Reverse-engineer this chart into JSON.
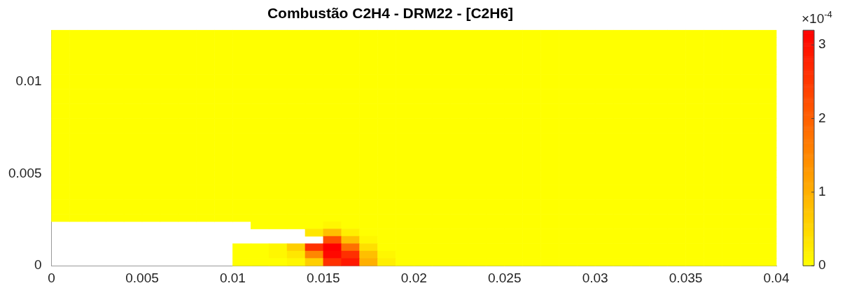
{
  "chart_data": {
    "type": "heatmap",
    "title": "Combustão C2H4 - DRM22 - [C2H6]",
    "x": [
      0.0005,
      0.0015,
      0.0025,
      0.0035,
      0.0045,
      0.0055,
      0.0065,
      0.0075,
      0.0085,
      0.0095,
      0.0105,
      0.0115,
      0.0125,
      0.0135,
      0.0145,
      0.0155,
      0.0165,
      0.0175,
      0.0185,
      0.0195,
      0.0205,
      0.0215,
      0.0225,
      0.0235,
      0.0245,
      0.0255,
      0.0265,
      0.0275,
      0.0285,
      0.0295,
      0.0305,
      0.0315,
      0.0325,
      0.0335,
      0.0345,
      0.0355,
      0.0365,
      0.0375,
      0.0385,
      0.0395
    ],
    "y": [
      0.0126,
      0.0122,
      0.0118,
      0.0114,
      0.011,
      0.0106,
      0.0102,
      0.0098,
      0.0094,
      0.009,
      0.0086,
      0.0082,
      0.0078,
      0.0074,
      0.007,
      0.0066,
      0.0062,
      0.0058,
      0.0054,
      0.005,
      0.0046,
      0.0042,
      0.0038,
      0.0034,
      0.003,
      0.0026,
      0.0022,
      0.0018,
      0.0014,
      0.001,
      0.0006,
      0.0002
    ],
    "xlim": [
      0,
      0.04
    ],
    "xticks": [
      0,
      0.005,
      0.01,
      0.015,
      0.02,
      0.025,
      0.03,
      0.035,
      0.04
    ],
    "ylim": [
      0,
      0.0128
    ],
    "yticks": [
      0,
      0.005,
      0.01
    ],
    "clim": [
      0,
      3.2
    ],
    "cticks": [
      0,
      1,
      2,
      3
    ],
    "colors": [
      "#ffff00",
      "#ff0000"
    ],
    "annotations": [
      "×10$^{-4}$"
    ],
    "grid": false,
    "cells": [
      [
        0,
        0,
        0,
        0,
        0,
        0,
        0,
        0,
        0,
        0,
        0,
        0,
        0,
        0,
        0,
        0,
        0,
        0,
        0,
        0,
        0,
        0,
        0,
        0,
        0,
        0,
        0,
        0,
        0,
        0,
        0,
        0,
        0,
        0,
        0,
        0,
        0,
        0,
        0,
        0
      ],
      [
        0,
        0,
        0,
        0,
        0,
        0,
        0,
        0,
        0,
        0,
        0,
        0,
        0,
        0,
        0,
        0,
        0,
        0,
        0,
        0,
        0,
        0,
        0,
        0,
        0,
        0,
        0,
        0,
        0,
        0,
        0,
        0,
        0,
        0,
        0,
        0,
        0,
        0,
        0,
        0
      ],
      [
        0,
        0,
        0,
        0,
        0,
        0,
        0,
        0,
        0,
        0,
        0,
        0,
        0,
        0,
        0,
        0,
        0,
        0,
        0,
        0,
        0,
        0,
        0,
        0,
        0,
        0,
        0,
        0,
        0,
        0,
        0,
        0,
        0,
        0,
        0,
        0,
        0,
        0,
        0,
        0
      ],
      [
        0,
        0,
        0,
        0,
        0,
        0,
        0,
        0,
        0,
        0,
        0,
        0,
        0,
        0,
        0,
        0,
        0,
        0,
        0,
        0,
        0,
        0,
        0,
        0,
        0,
        0,
        0,
        0,
        0,
        0,
        0,
        0,
        0,
        0,
        0,
        0,
        0,
        0,
        0,
        0
      ],
      [
        0,
        0,
        0,
        0,
        0,
        0,
        0,
        0,
        0,
        0,
        0,
        0,
        0,
        0,
        0,
        0,
        0,
        0,
        0,
        0,
        0,
        0,
        0,
        0,
        0,
        0,
        0,
        0,
        0,
        0,
        0,
        0,
        0,
        0,
        0,
        0,
        0,
        0,
        0,
        0
      ],
      [
        0,
        0,
        0,
        0,
        0,
        0,
        0,
        0,
        0,
        0,
        0,
        0,
        0,
        0,
        0,
        0,
        0,
        0,
        0,
        0,
        0,
        0,
        0,
        0,
        0,
        0,
        0,
        0,
        0,
        0,
        0,
        0,
        0,
        0,
        0,
        0,
        0,
        0,
        0,
        0
      ],
      [
        0,
        0,
        0,
        0,
        0,
        0,
        0,
        0,
        0,
        0,
        0,
        0,
        0,
        0,
        0,
        0,
        0,
        0,
        0,
        0,
        0,
        0,
        0,
        0,
        0,
        0,
        0,
        0,
        0,
        0,
        0,
        0,
        0,
        0,
        0,
        0,
        0,
        0,
        0,
        0
      ],
      [
        0,
        0,
        0,
        0,
        0,
        0,
        0,
        0,
        0,
        0,
        0,
        0,
        0,
        0,
        0,
        0,
        0,
        0,
        0,
        0,
        0,
        0,
        0,
        0,
        0,
        0,
        0,
        0,
        0,
        0,
        0,
        0,
        0,
        0,
        0,
        0,
        0,
        0,
        0,
        0
      ],
      [
        0,
        0,
        0,
        0,
        0,
        0,
        0,
        0,
        0,
        0,
        0,
        0,
        0,
        0,
        0,
        0,
        0,
        0,
        0,
        0,
        0,
        0,
        0,
        0,
        0,
        0,
        0,
        0,
        0,
        0,
        0,
        0,
        0,
        0,
        0,
        0,
        0,
        0,
        0,
        0
      ],
      [
        0,
        0,
        0,
        0,
        0,
        0,
        0,
        0,
        0,
        0,
        0,
        0,
        0,
        0,
        0,
        0,
        0,
        0,
        0,
        0,
        0,
        0,
        0,
        0,
        0,
        0,
        0,
        0,
        0,
        0,
        0,
        0,
        0,
        0,
        0,
        0,
        0,
        0,
        0,
        0
      ],
      [
        0,
        0,
        0,
        0,
        0,
        0,
        0,
        0,
        0,
        0,
        0,
        0,
        0,
        0,
        0,
        0,
        0,
        0,
        0,
        0,
        0,
        0,
        0,
        0,
        0,
        0,
        0,
        0,
        0,
        0,
        0,
        0,
        0,
        0,
        0,
        0,
        0,
        0,
        0,
        0
      ],
      [
        0,
        0,
        0,
        0,
        0,
        0,
        0,
        0,
        0,
        0,
        0,
        0,
        0,
        0,
        0,
        0,
        0,
        0,
        0,
        0,
        0,
        0,
        0,
        0,
        0,
        0,
        0,
        0,
        0,
        0,
        0,
        0,
        0,
        0,
        0,
        0,
        0,
        0,
        0,
        0
      ],
      [
        0,
        0,
        0,
        0,
        0,
        0,
        0,
        0,
        0,
        0,
        0,
        0,
        0,
        0,
        0,
        0,
        0,
        0,
        0,
        0,
        0,
        0,
        0,
        0,
        0,
        0,
        0,
        0,
        0,
        0,
        0,
        0,
        0,
        0,
        0,
        0,
        0,
        0,
        0,
        0
      ],
      [
        0,
        0,
        0,
        0,
        0,
        0,
        0,
        0,
        0,
        0,
        0,
        0,
        0,
        0,
        0,
        0,
        0,
        0,
        0,
        0,
        0,
        0,
        0,
        0,
        0,
        0,
        0,
        0,
        0,
        0,
        0,
        0,
        0,
        0,
        0,
        0,
        0,
        0,
        0,
        0
      ],
      [
        0,
        0,
        0,
        0,
        0,
        0,
        0,
        0,
        0,
        0,
        0,
        0,
        0,
        0,
        0,
        0,
        0,
        0,
        0,
        0,
        0,
        0,
        0,
        0,
        0,
        0,
        0,
        0,
        0,
        0,
        0,
        0,
        0,
        0,
        0,
        0,
        0,
        0,
        0,
        0
      ],
      [
        0,
        0,
        0,
        0,
        0,
        0,
        0,
        0,
        0,
        0,
        0,
        0,
        0,
        0,
        0,
        0,
        0,
        0,
        0,
        0,
        0,
        0,
        0,
        0,
        0,
        0,
        0,
        0,
        0,
        0,
        0,
        0,
        0,
        0,
        0,
        0,
        0,
        0,
        0,
        0
      ],
      [
        0,
        0,
        0,
        0,
        0,
        0,
        0,
        0,
        0,
        0,
        0,
        0,
        0,
        0,
        0,
        0,
        0,
        0,
        0,
        0,
        0,
        0,
        0,
        0,
        0,
        0,
        0,
        0,
        0,
        0,
        0,
        0,
        0,
        0,
        0,
        0,
        0,
        0,
        0,
        0
      ],
      [
        0,
        0,
        0,
        0,
        0,
        0,
        0,
        0,
        0,
        0,
        0,
        0,
        0,
        0,
        0,
        0,
        0,
        0,
        0,
        0,
        0,
        0,
        0,
        0,
        0,
        0,
        0,
        0,
        0,
        0,
        0,
        0,
        0,
        0,
        0,
        0,
        0,
        0,
        0,
        0
      ],
      [
        0,
        0,
        0,
        0,
        0,
        0,
        0,
        0,
        0,
        0,
        0,
        0,
        0,
        0,
        0,
        0,
        0,
        0,
        0,
        0,
        0,
        0,
        0,
        0,
        0,
        0,
        0,
        0,
        0,
        0,
        0,
        0,
        0,
        0,
        0,
        0,
        0,
        0,
        0,
        0
      ],
      [
        0,
        0,
        0,
        0,
        0,
        0,
        0,
        0,
        0,
        0,
        0,
        0,
        0,
        0,
        0,
        0,
        0,
        0,
        0,
        0,
        0,
        0,
        0,
        0,
        0,
        0,
        0,
        0,
        0,
        0,
        0,
        0,
        0,
        0,
        0,
        0,
        0,
        0,
        0,
        0
      ],
      [
        0,
        0,
        0,
        0,
        0,
        0,
        0,
        0,
        0,
        0,
        0,
        0,
        0,
        0,
        0,
        0,
        0,
        0,
        0,
        0,
        0,
        0,
        0,
        0,
        0,
        0,
        0,
        0,
        0,
        0,
        0,
        0,
        0,
        0,
        0,
        0,
        0,
        0,
        0,
        0
      ],
      [
        0,
        0,
        0,
        0,
        0,
        0,
        0,
        0,
        0,
        0,
        0,
        0,
        0,
        0,
        0,
        0,
        0,
        0,
        0,
        0,
        0,
        0,
        0,
        0,
        0,
        0,
        0,
        0,
        0,
        0,
        0,
        0,
        0,
        0,
        0,
        0,
        0,
        0,
        0,
        0
      ],
      [
        0,
        0,
        0,
        0,
        0,
        0,
        0,
        0,
        0,
        0,
        0,
        0,
        0,
        0,
        0,
        0,
        0,
        0,
        0,
        0,
        0,
        0,
        0,
        0,
        0,
        0,
        0,
        0,
        0,
        0,
        0,
        0,
        0,
        0,
        0,
        0,
        0,
        0,
        0,
        0
      ],
      [
        0,
        0,
        0,
        0,
        0,
        0,
        0,
        0,
        0,
        0,
        0,
        0,
        0,
        0,
        0,
        0,
        0,
        0,
        0,
        0,
        0,
        0,
        0,
        0,
        0,
        0,
        0,
        0,
        0,
        0,
        0,
        0,
        0,
        0,
        0,
        0,
        0,
        0,
        0,
        0
      ],
      [
        0,
        0,
        0,
        0,
        0,
        0,
        0,
        0,
        0,
        0,
        0,
        0,
        0,
        0,
        0,
        0,
        0,
        0,
        0,
        0,
        0,
        0,
        0,
        0,
        0,
        0,
        0,
        0,
        0,
        0,
        0,
        0,
        0,
        0,
        0,
        0,
        0,
        0,
        0,
        0
      ],
      [
        0,
        0,
        0,
        0,
        0,
        0,
        0,
        0,
        0,
        0,
        0,
        0,
        0,
        0,
        0,
        0,
        0,
        0,
        0,
        0,
        0,
        0,
        0,
        0,
        0,
        0,
        0,
        0,
        0,
        0,
        0,
        0,
        0,
        0,
        0,
        0,
        0,
        0,
        0,
        0
      ],
      [
        null,
        null,
        null,
        null,
        null,
        null,
        null,
        null,
        null,
        null,
        null,
        0,
        0,
        0,
        0,
        0.1,
        0,
        0,
        0,
        0,
        0,
        0,
        0,
        0,
        0,
        0,
        0,
        0,
        0,
        0,
        0,
        0,
        0,
        0,
        0,
        0,
        0,
        0,
        0,
        0
      ],
      [
        null,
        null,
        null,
        null,
        null,
        null,
        null,
        null,
        null,
        null,
        null,
        null,
        null,
        null,
        0.3,
        0.8,
        0.2,
        0,
        0,
        0,
        0,
        0,
        0,
        0,
        0,
        0,
        0,
        0,
        0,
        0,
        0,
        0,
        0,
        0,
        0,
        0,
        0,
        0,
        0,
        0
      ],
      [
        null,
        null,
        null,
        null,
        null,
        null,
        null,
        null,
        null,
        null,
        null,
        null,
        null,
        null,
        null,
        2.2,
        0.8,
        0.1,
        0,
        0,
        0,
        0,
        0,
        0,
        0,
        0,
        0,
        0,
        0,
        0,
        0,
        0,
        0,
        0,
        0,
        0,
        0,
        0,
        0,
        0
      ],
      [
        null,
        null,
        null,
        null,
        null,
        null,
        null,
        null,
        null,
        null,
        0,
        0,
        0.1,
        0.6,
        2.6,
        3.2,
        1.8,
        0.4,
        0,
        0,
        0,
        0,
        0,
        0,
        0,
        0,
        0,
        0,
        0,
        0,
        0,
        0,
        0,
        0,
        0,
        0,
        0,
        0,
        0,
        0
      ],
      [
        null,
        null,
        null,
        null,
        null,
        null,
        null,
        null,
        null,
        null,
        0,
        0,
        0.1,
        0.3,
        1.5,
        3.1,
        2.6,
        0.8,
        0.1,
        0,
        0,
        0,
        0,
        0,
        0,
        0,
        0,
        0,
        0,
        0,
        0,
        0,
        0,
        0,
        0,
        0,
        0,
        0,
        0,
        0
      ],
      [
        null,
        null,
        null,
        null,
        null,
        null,
        null,
        null,
        null,
        null,
        0,
        0,
        0,
        0.1,
        0.6,
        2.6,
        2.9,
        1,
        0.2,
        0,
        0,
        0,
        0,
        0,
        0,
        0,
        0,
        0,
        0,
        0,
        0,
        0,
        0,
        0,
        0,
        0,
        0,
        0,
        0,
        0
      ]
    ]
  }
}
